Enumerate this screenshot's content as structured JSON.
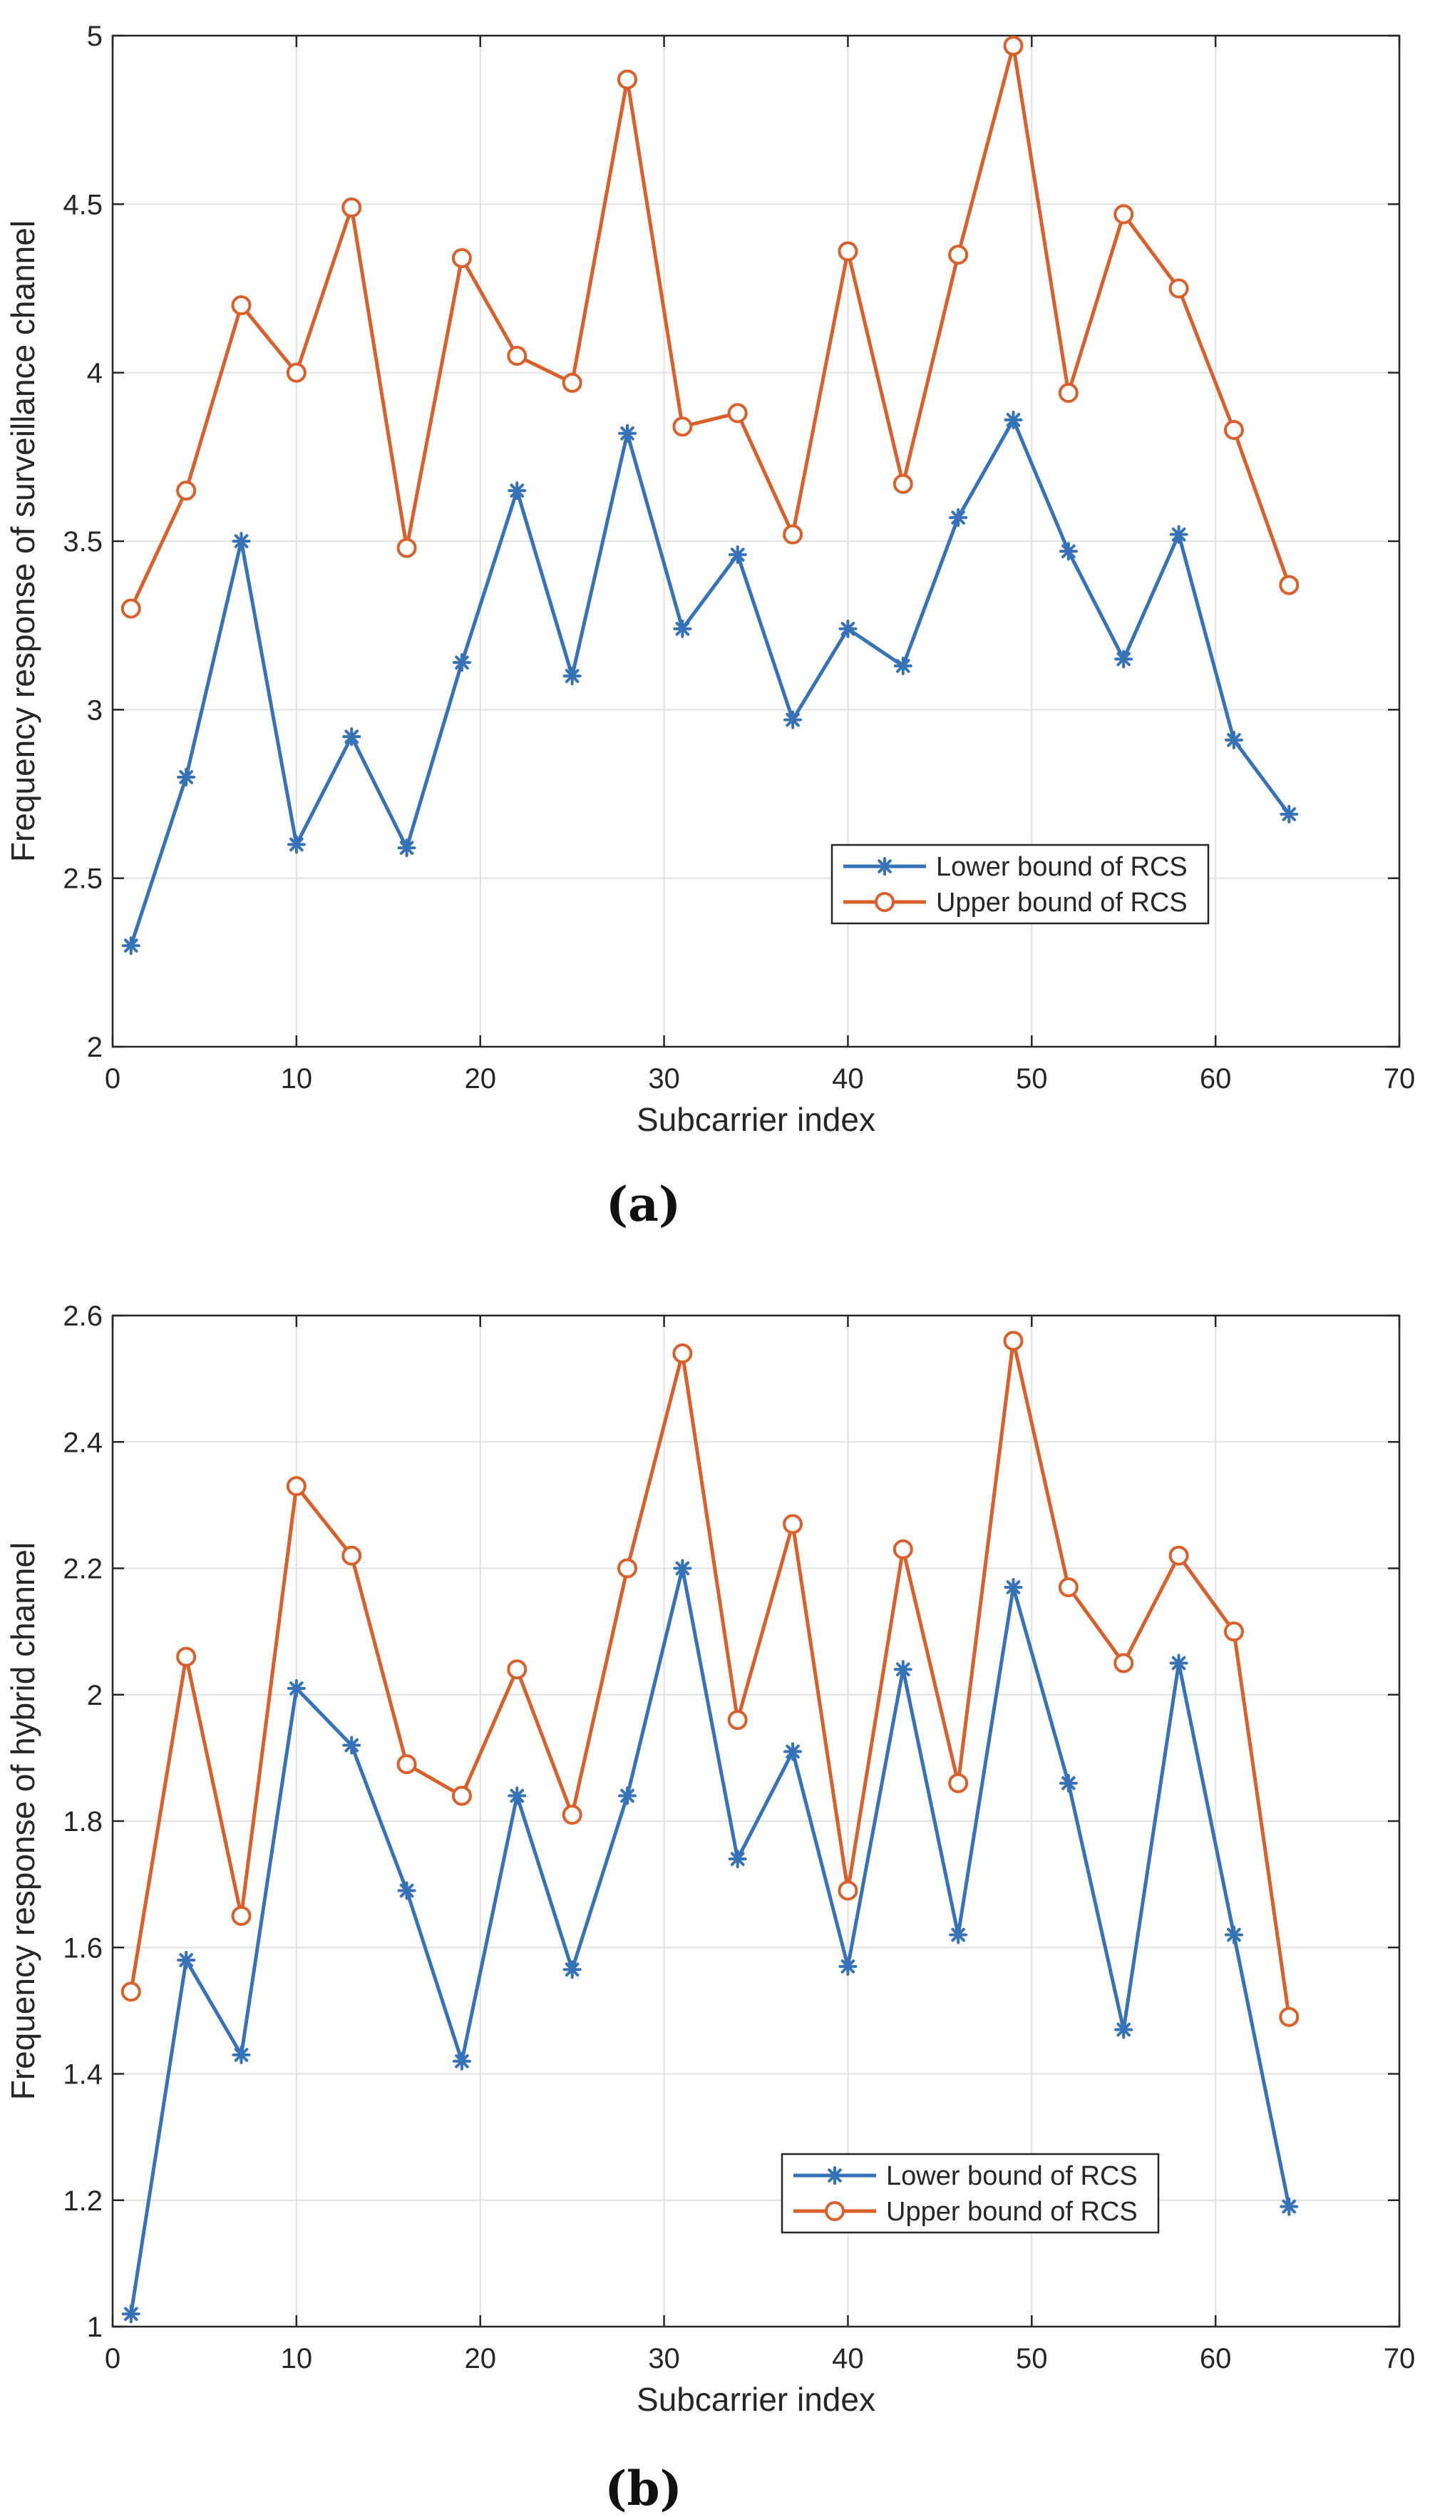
{
  "chart_data": [
    {
      "type": "line",
      "caption": "(a)",
      "title": "",
      "xlabel": "Subcarrier index",
      "ylabel": "Frequency response of surveillance channel",
      "xlim": [
        0,
        70
      ],
      "ylim": [
        2,
        5
      ],
      "xticks": [
        "0",
        "10",
        "20",
        "30",
        "40",
        "50",
        "60",
        "70"
      ],
      "yticks": [
        "2",
        "2.5",
        "3",
        "3.5",
        "4",
        "4.5",
        "5"
      ],
      "grid": true,
      "legend_position": "lower-right",
      "x": [
        1,
        4,
        7,
        10,
        13,
        16,
        19,
        22,
        25,
        28,
        31,
        34,
        37,
        40,
        43,
        46,
        49,
        52,
        55,
        58,
        61,
        64
      ],
      "series": [
        {
          "name": "Lower bound of RCS",
          "color": "#3572b8",
          "marker": "asterisk",
          "values": [
            2.3,
            2.8,
            3.5,
            2.6,
            2.92,
            2.59,
            3.14,
            3.65,
            3.1,
            3.82,
            3.24,
            3.46,
            2.97,
            3.24,
            3.13,
            3.57,
            3.86,
            3.47,
            3.15,
            3.52,
            2.91,
            2.69
          ]
        },
        {
          "name": "Upper bound of RCS",
          "color": "#d95f2b",
          "marker": "circle",
          "values": [
            3.3,
            3.65,
            4.2,
            4.0,
            4.49,
            3.48,
            4.34,
            4.05,
            3.97,
            4.87,
            3.84,
            3.88,
            3.52,
            4.36,
            3.67,
            4.35,
            4.97,
            3.94,
            4.47,
            4.25,
            3.83,
            3.37
          ]
        }
      ]
    },
    {
      "type": "line",
      "caption": "(b)",
      "title": "",
      "xlabel": "Subcarrier index",
      "ylabel": "Frequency response of hybrid channel",
      "xlim": [
        0,
        70
      ],
      "ylim": [
        1,
        2.6
      ],
      "xticks": [
        "0",
        "10",
        "20",
        "30",
        "40",
        "50",
        "60",
        "70"
      ],
      "yticks": [
        "1",
        "1.2",
        "1.4",
        "1.6",
        "1.8",
        "2",
        "2.2",
        "2.4",
        "2.6"
      ],
      "grid": true,
      "legend_position": "lower-right",
      "x": [
        1,
        4,
        7,
        10,
        13,
        16,
        19,
        22,
        25,
        28,
        31,
        34,
        37,
        40,
        43,
        46,
        49,
        52,
        55,
        58,
        61,
        64
      ],
      "series": [
        {
          "name": "Lower bound of RCS",
          "color": "#3572b8",
          "marker": "asterisk",
          "values": [
            1.02,
            1.58,
            1.43,
            2.01,
            1.92,
            1.69,
            1.42,
            1.84,
            1.565,
            1.84,
            2.2,
            1.74,
            1.91,
            1.57,
            2.04,
            1.62,
            2.17,
            1.86,
            1.47,
            2.05,
            1.62,
            1.19
          ]
        },
        {
          "name": "Upper bound of RCS",
          "color": "#d95f2b",
          "marker": "circle",
          "values": [
            1.53,
            2.06,
            1.65,
            2.33,
            2.22,
            1.89,
            1.84,
            2.04,
            1.81,
            2.2,
            2.54,
            1.96,
            2.27,
            1.69,
            2.23,
            1.86,
            2.56,
            2.17,
            2.05,
            2.22,
            2.1,
            1.49
          ]
        }
      ]
    }
  ]
}
